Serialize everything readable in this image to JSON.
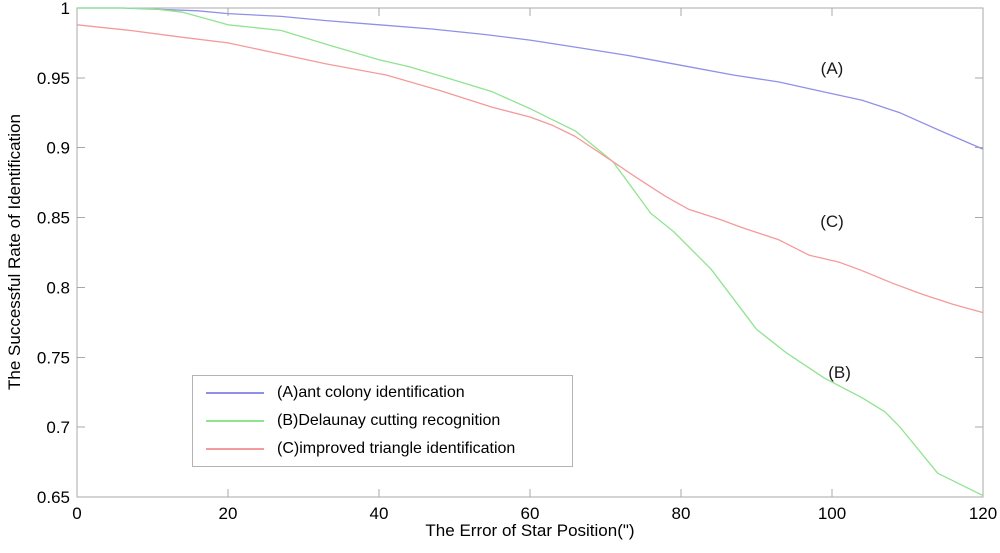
{
  "chart_data": {
    "type": "line",
    "title": "",
    "xlabel": "The Error of Star Position(\")",
    "ylabel": "The Successful Rate of Identification",
    "xlim": [
      0,
      120
    ],
    "ylim": [
      0.65,
      1.0
    ],
    "x_ticks": [
      0,
      20,
      40,
      60,
      80,
      100,
      120
    ],
    "x_tick_labels": [
      "0",
      "20",
      "40",
      "60",
      "80",
      "100",
      "120"
    ],
    "y_ticks": [
      0.65,
      0.7,
      0.75,
      0.8,
      0.85,
      0.9,
      0.95,
      1
    ],
    "y_tick_labels": [
      "0.65",
      "0.7",
      "0.75",
      "0.8",
      "0.85",
      "0.9",
      "0.95",
      "1"
    ],
    "grid": false,
    "frame": "box-with-inward-ticks",
    "frame_color": "#a8a8a8",
    "text_color": "#000000",
    "legend_position": "inside-bottom-left",
    "series": [
      {
        "name": "(A)ant colony identification",
        "color": "#9090e8",
        "x": [
          0,
          6,
          11,
          16,
          20,
          27,
          33,
          40,
          47,
          54,
          60,
          66,
          73,
          76,
          81,
          87,
          93,
          98,
          104,
          109,
          114,
          120
        ],
        "y": [
          1.0,
          1.0,
          0.999,
          0.998,
          0.996,
          0.994,
          0.991,
          0.988,
          0.985,
          0.981,
          0.977,
          0.972,
          0.966,
          0.963,
          0.958,
          0.952,
          0.947,
          0.941,
          0.934,
          0.925,
          0.913,
          0.899
        ]
      },
      {
        "name": "(B)Delaunay cutting recognition",
        "color": "#90e490",
        "x": [
          0,
          6,
          10,
          14,
          20,
          27,
          33,
          40,
          44,
          49,
          55,
          60,
          63,
          66,
          71,
          76,
          79,
          84,
          90,
          94,
          99,
          104,
          107,
          109,
          114,
          117,
          120
        ],
        "y": [
          1.0,
          1.0,
          0.9995,
          0.997,
          0.988,
          0.984,
          0.974,
          0.963,
          0.958,
          0.95,
          0.94,
          0.928,
          0.92,
          0.912,
          0.89,
          0.853,
          0.84,
          0.813,
          0.77,
          0.753,
          0.735,
          0.721,
          0.711,
          0.7,
          0.667,
          0.659,
          0.651
        ]
      },
      {
        "name": "(C)improved triangle identification",
        "color": "#f49a9a",
        "x": [
          0,
          7,
          14,
          20,
          27,
          33,
          41,
          48,
          55,
          60,
          63,
          66,
          71,
          74,
          78,
          81,
          85,
          88,
          93,
          97,
          101,
          104,
          108,
          112,
          116,
          120
        ],
        "y": [
          0.988,
          0.984,
          0.979,
          0.975,
          0.967,
          0.96,
          0.952,
          0.941,
          0.929,
          0.922,
          0.916,
          0.908,
          0.89,
          0.879,
          0.865,
          0.856,
          0.849,
          0.843,
          0.834,
          0.823,
          0.818,
          0.812,
          0.803,
          0.795,
          0.788,
          0.782
        ]
      }
    ],
    "annotations": [
      {
        "text": "(A)",
        "x": 100,
        "y": 0.956
      },
      {
        "text": "(C)",
        "x": 100,
        "y": 0.847
      },
      {
        "text": "(B)",
        "x": 101,
        "y": 0.739
      }
    ]
  }
}
